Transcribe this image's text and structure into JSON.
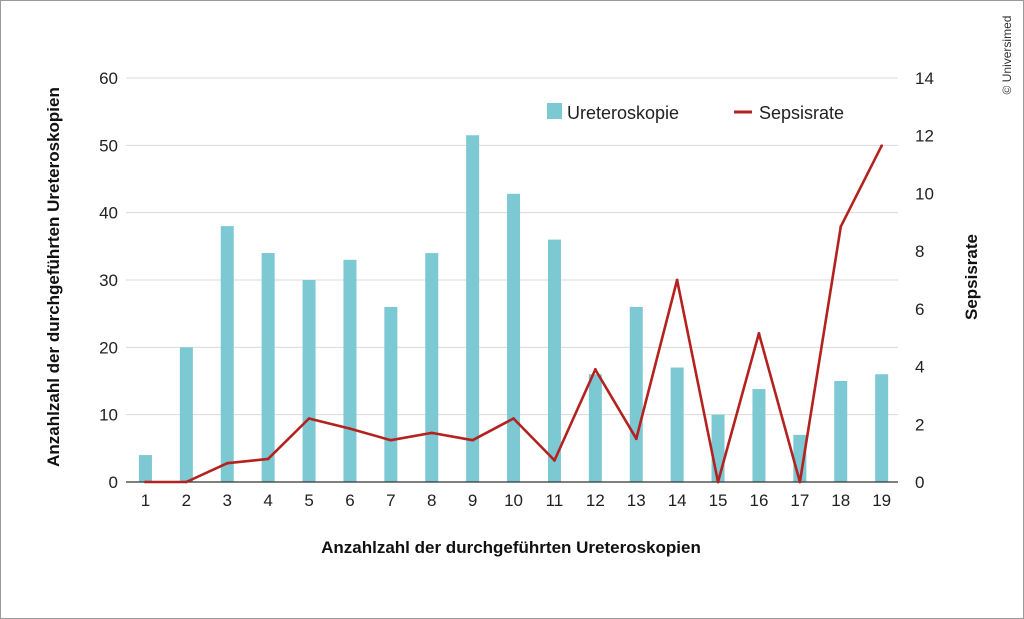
{
  "credit": "© Universimed",
  "chart_data": {
    "type": "bar",
    "categories": [
      "1",
      "2",
      "3",
      "4",
      "5",
      "6",
      "7",
      "8",
      "9",
      "10",
      "11",
      "12",
      "13",
      "14",
      "15",
      "16",
      "17",
      "18",
      "19"
    ],
    "series": [
      {
        "name": "Ureteroskopie",
        "type": "bar",
        "axis": "left",
        "color": "#7cc8d3",
        "values": [
          4,
          20,
          38,
          34,
          30,
          33,
          26,
          34,
          51.5,
          42.8,
          36,
          16,
          26,
          17,
          10,
          13.8,
          7,
          15,
          16
        ]
      },
      {
        "name": "Sepsisrate",
        "type": "line",
        "axis": "right",
        "color": "#b3221f",
        "values": [
          0,
          0,
          0.65,
          0.8,
          2.2,
          1.85,
          1.45,
          1.7,
          1.45,
          2.2,
          0.75,
          3.9,
          1.5,
          7,
          0,
          5.15,
          0,
          8.85,
          11.65
        ]
      }
    ],
    "xlabel": "Anzahlzahl der durchgeführten Ureteroskopien",
    "ylabel_left": "Anzahlzahl der durchgeführten Ureteroskopien",
    "ylabel_right": "Sepsisrate",
    "ylim_left": [
      0,
      60
    ],
    "yticks_left": [
      "0",
      "10",
      "20",
      "30",
      "40",
      "50",
      "60"
    ],
    "ylim_right": [
      0,
      14
    ],
    "yticks_right": [
      "0",
      "2",
      "4",
      "6",
      "8",
      "10",
      "12",
      "14"
    ],
    "grid": true,
    "legend_position": "top-right"
  }
}
